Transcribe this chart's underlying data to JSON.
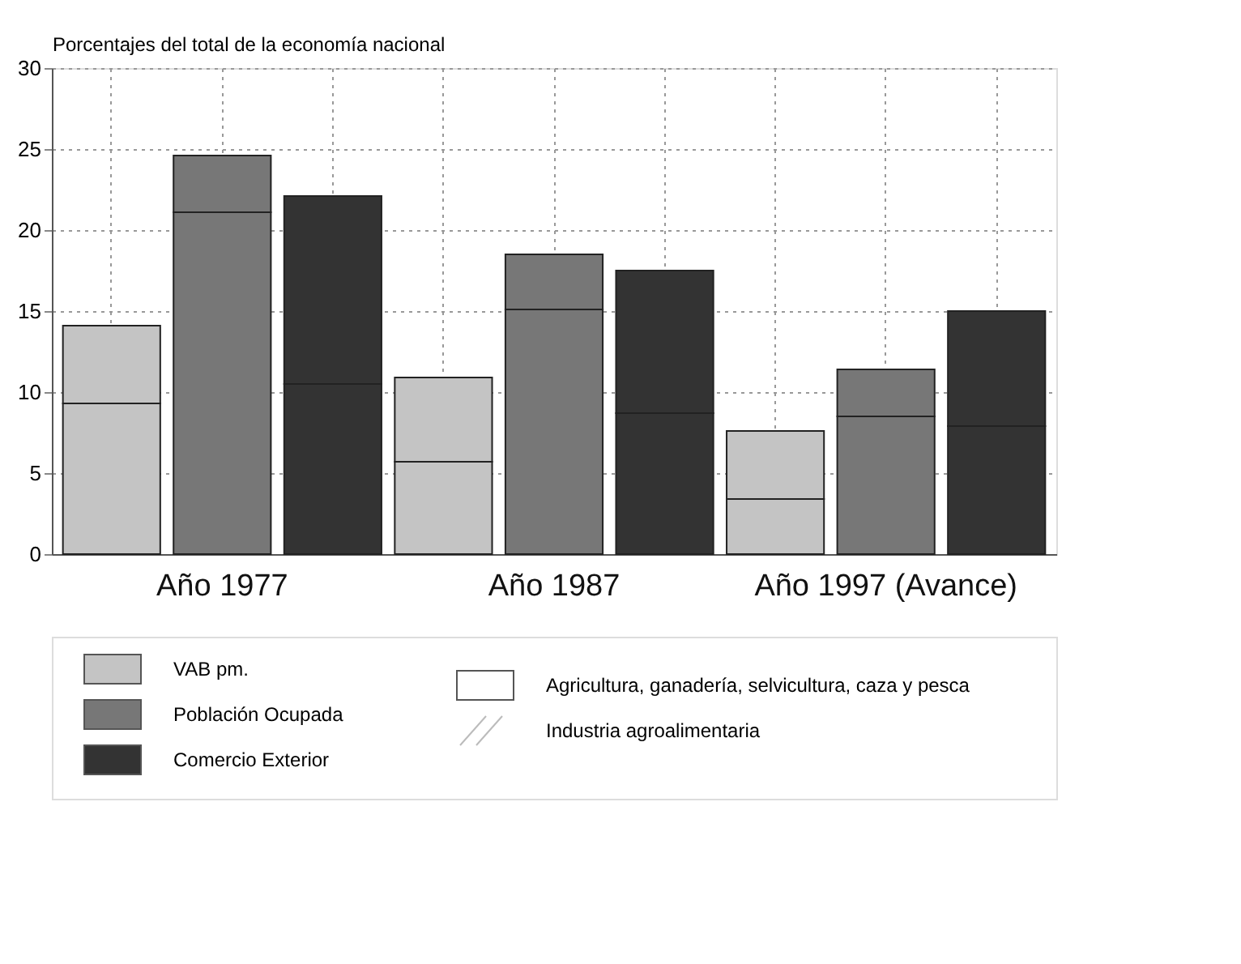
{
  "chart_data": {
    "type": "bar",
    "stacked": true,
    "ylabel": "Porcentajes del total de la economía nacional",
    "categories": [
      null,
      "Año 1977",
      null,
      null,
      "Año 1987",
      null,
      null,
      "Año 1997 (Avance)",
      null
    ],
    "series": [
      {
        "name": "VAB pm.",
        "color": "#c4c4c4",
        "values": [
          9.3,
          null,
          null,
          5.7,
          null,
          null,
          3.4,
          null,
          null
        ]
      },
      {
        "name": "Población Ocupada",
        "color": "#777777",
        "values": [
          null,
          21.1,
          null,
          null,
          15.1,
          null,
          null,
          8.5,
          null
        ]
      },
      {
        "name": "Comercio Exterior",
        "color": "#333333",
        "values": [
          null,
          null,
          10.5,
          null,
          null,
          8.7,
          null,
          null,
          7.9
        ]
      },
      {
        "name": "Industria agroalimentaria",
        "colors": [
          "#c4c4c4",
          "#777777",
          "#333333",
          "#c4c4c4",
          "#777777",
          "#333333",
          "#c4c4c4",
          "#777777",
          "#333333"
        ],
        "values": [
          4.8,
          3.5,
          11.6,
          5.2,
          3.4,
          8.8,
          4.2,
          2.9,
          7.1
        ]
      }
    ],
    "annotations": [
      "Agricultura, ganadería, selvicultura, caza y pesca"
    ],
    "ylim": [
      0,
      30
    ],
    "yticks": [
      0,
      5,
      10,
      15,
      20,
      25,
      30
    ],
    "grid": true,
    "legend": "bottom"
  }
}
